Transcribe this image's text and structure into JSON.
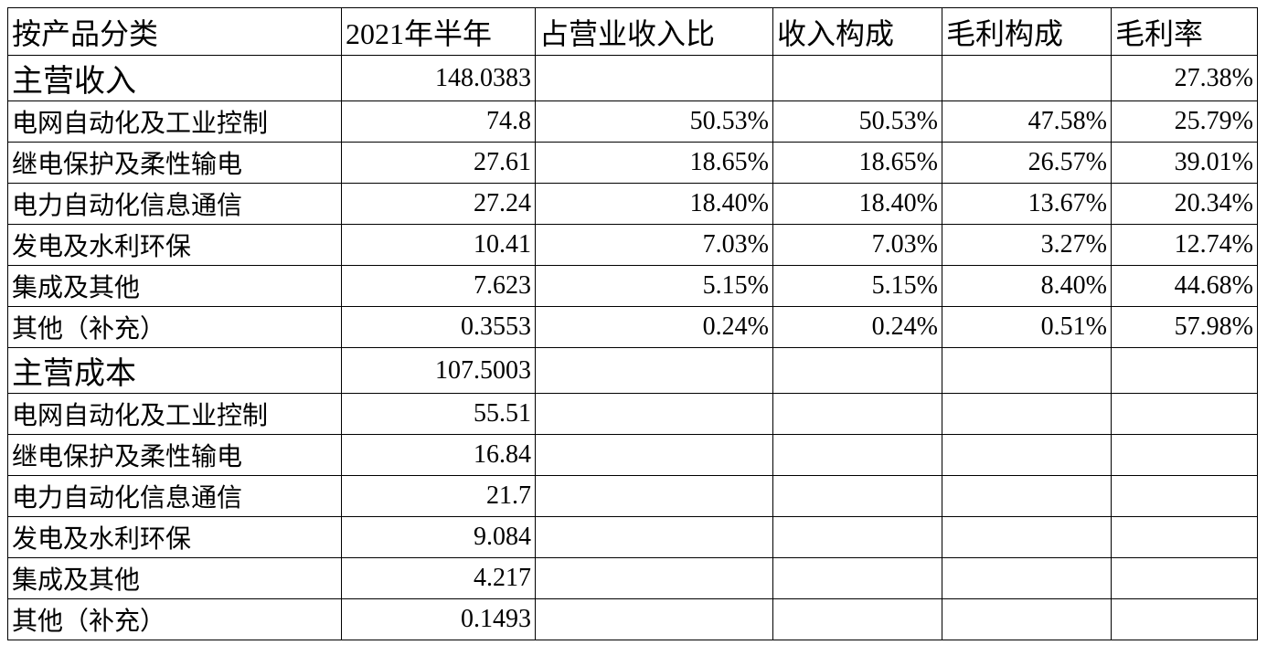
{
  "header": [
    "按产品分类",
    "2021年半年",
    "占营业收入比",
    "收入构成",
    "毛利构成",
    "毛利率"
  ],
  "sections": [
    {
      "row": [
        "主营收入",
        "148.0383",
        null,
        null,
        null,
        "27.38%"
      ],
      "items": [
        [
          "电网自动化及工业控制",
          "74.8",
          "50.53%",
          "50.53%",
          "47.58%",
          "25.79%"
        ],
        [
          "继电保护及柔性输电",
          "27.61",
          "18.65%",
          "18.65%",
          "26.57%",
          "39.01%"
        ],
        [
          "电力自动化信息通信",
          "27.24",
          "18.40%",
          "18.40%",
          "13.67%",
          "20.34%"
        ],
        [
          "发电及水利环保",
          "10.41",
          "7.03%",
          "7.03%",
          "3.27%",
          "12.74%"
        ],
        [
          "集成及其他",
          "7.623",
          "5.15%",
          "5.15%",
          "8.40%",
          "44.68%"
        ],
        [
          "其他（补充）",
          "0.3553",
          "0.24%",
          "0.24%",
          "0.51%",
          "57.98%"
        ]
      ]
    },
    {
      "row": [
        "主营成本",
        "107.5003"
      ],
      "items": [
        [
          "电网自动化及工业控制",
          "55.51"
        ],
        [
          "继电保护及柔性输电",
          "16.84"
        ],
        [
          "电力自动化信息通信",
          "21.7"
        ],
        [
          "发电及水利环保",
          "9.084"
        ],
        [
          "集成及其他",
          "4.217"
        ],
        [
          "其他（补充）",
          "0.1493"
        ]
      ]
    }
  ]
}
